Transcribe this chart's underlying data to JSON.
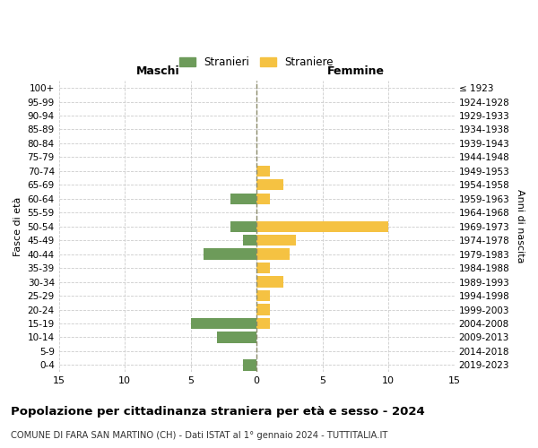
{
  "age_groups": [
    "100+",
    "95-99",
    "90-94",
    "85-89",
    "80-84",
    "75-79",
    "70-74",
    "65-69",
    "60-64",
    "55-59",
    "50-54",
    "45-49",
    "40-44",
    "35-39",
    "30-34",
    "25-29",
    "20-24",
    "15-19",
    "10-14",
    "5-9",
    "0-4"
  ],
  "birth_years": [
    "≤ 1923",
    "1924-1928",
    "1929-1933",
    "1934-1938",
    "1939-1943",
    "1944-1948",
    "1949-1953",
    "1954-1958",
    "1959-1963",
    "1964-1968",
    "1969-1973",
    "1974-1978",
    "1979-1983",
    "1984-1988",
    "1989-1993",
    "1994-1998",
    "1999-2003",
    "2004-2008",
    "2009-2013",
    "2014-2018",
    "2019-2023"
  ],
  "maschi": [
    0,
    0,
    0,
    0,
    0,
    0,
    0,
    0,
    2,
    0,
    2,
    1,
    4,
    0,
    0,
    0,
    0,
    5,
    3,
    0,
    1
  ],
  "femmine": [
    0,
    0,
    0,
    0,
    0,
    0,
    1,
    2,
    1,
    0,
    10,
    3,
    2.5,
    1,
    2,
    1,
    1,
    1,
    0,
    0,
    0
  ],
  "male_color": "#6d9b5a",
  "female_color": "#f5c242",
  "title": "Popolazione per cittadinanza straniera per età e sesso - 2024",
  "subtitle": "COMUNE DI FARA SAN MARTINO (CH) - Dati ISTAT al 1° gennaio 2024 - TUTTITALIA.IT",
  "legend_male": "Stranieri",
  "legend_female": "Straniere",
  "xlabel_left": "Maschi",
  "xlabel_right": "Femmine",
  "ylabel_left": "Fasce di età",
  "ylabel_right": "Anni di nascita",
  "xlim": 15,
  "bg_color": "#ffffff",
  "grid_color": "#cccccc",
  "bar_height": 0.8
}
